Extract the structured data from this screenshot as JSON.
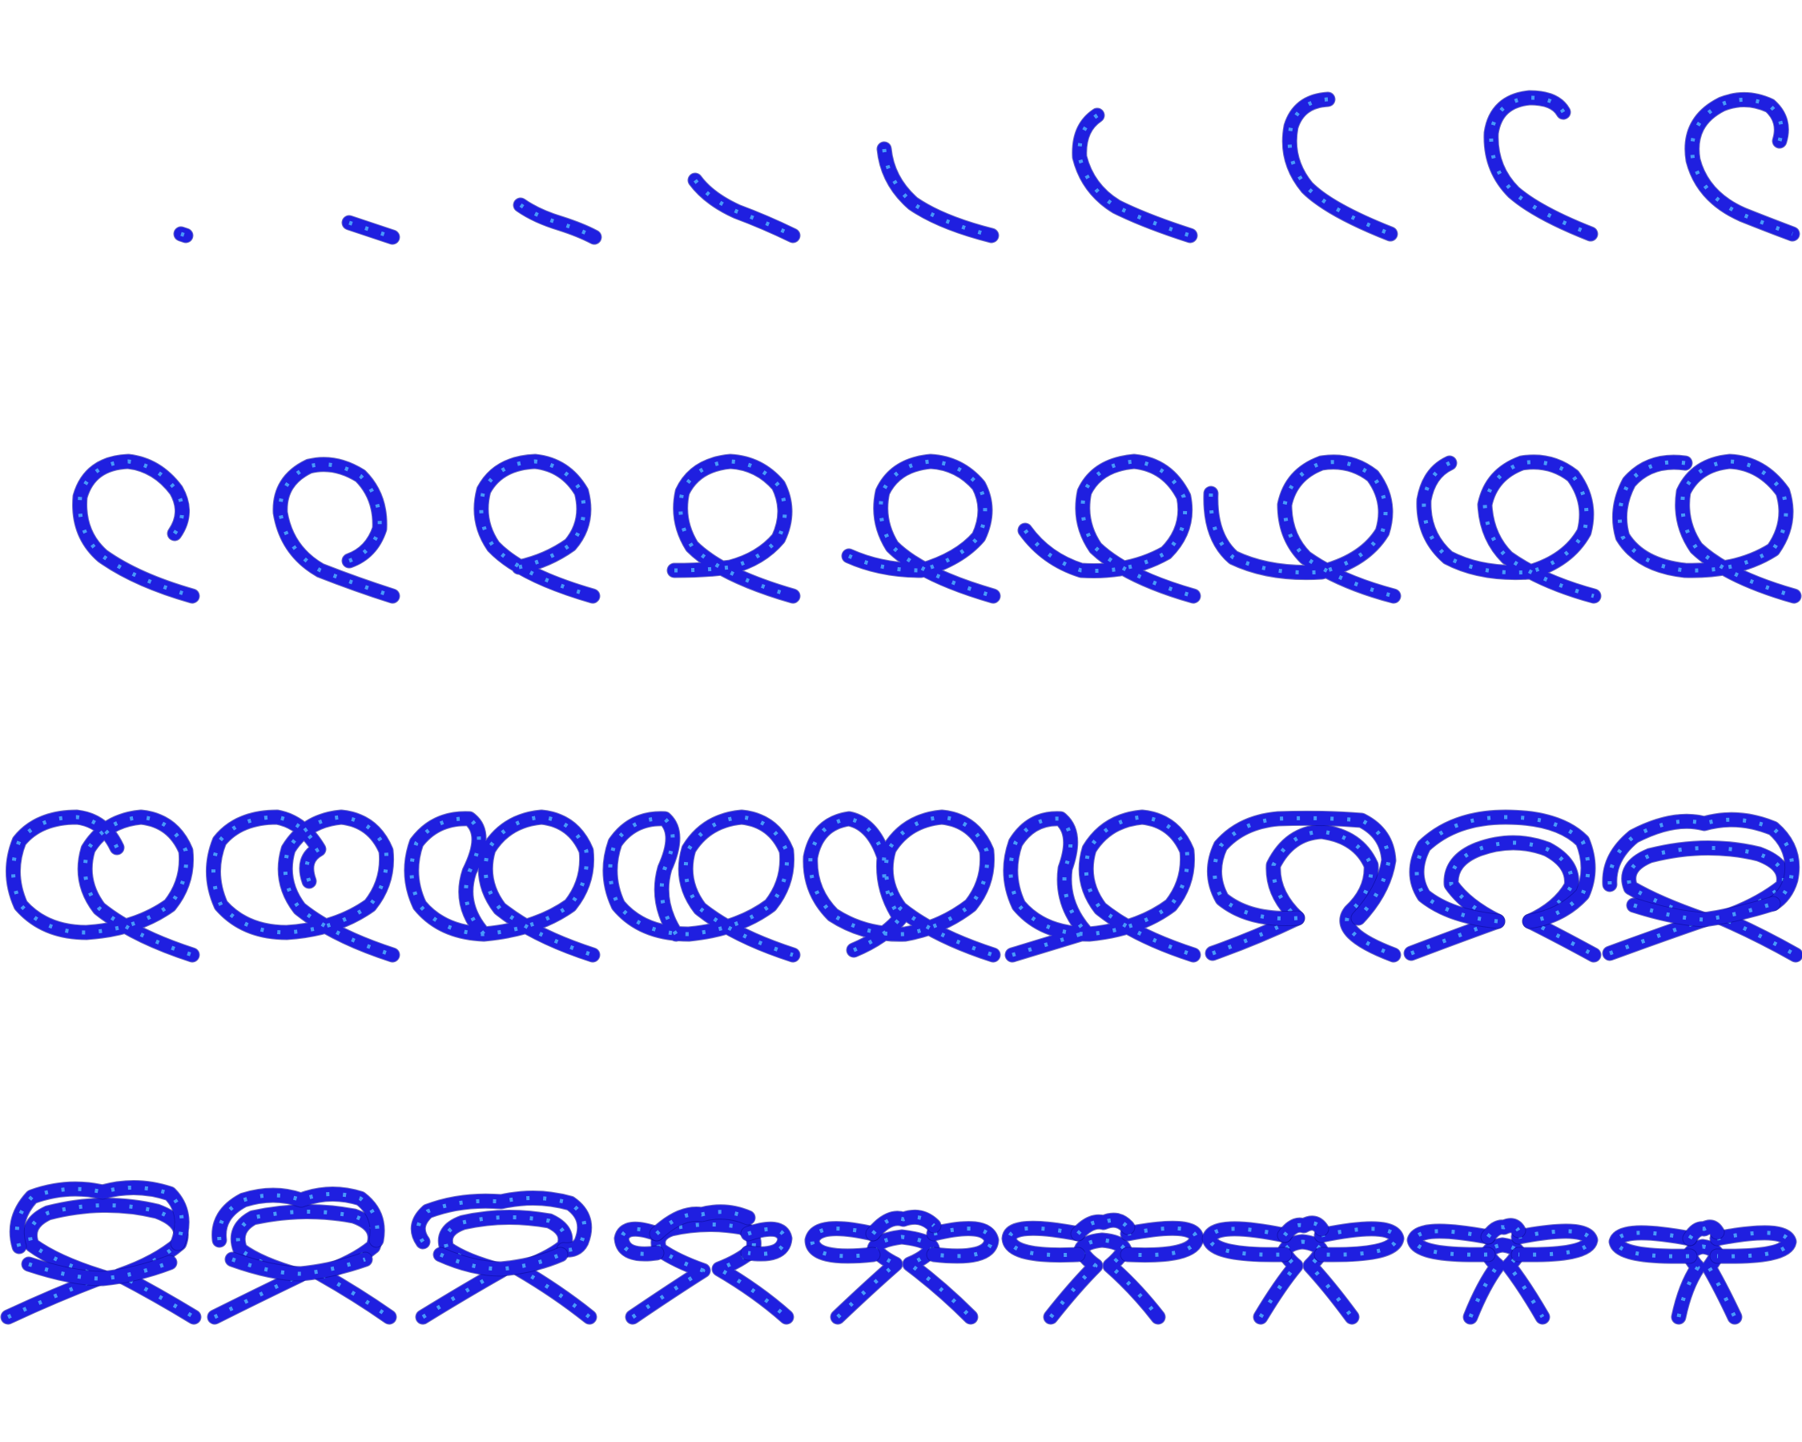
{
  "figure": {
    "colors": {
      "background": "#ffffff",
      "rope": "#1f1fe0",
      "rope_edge": "#0c0c9a",
      "rope_fleck": "#4fb0ff"
    },
    "layout": {
      "rows": 4,
      "columns": 9
    },
    "frames": [
      {
        "row": 1,
        "col": 1,
        "stage": "tail-point"
      },
      {
        "row": 1,
        "col": 2,
        "stage": "short-segment"
      },
      {
        "row": 1,
        "col": 3,
        "stage": "gentle-curve"
      },
      {
        "row": 1,
        "col": 4,
        "stage": "curve-rising"
      },
      {
        "row": 1,
        "col": 5,
        "stage": "curve-arc"
      },
      {
        "row": 1,
        "col": 6,
        "stage": "half-hook"
      },
      {
        "row": 1,
        "col": 7,
        "stage": "open-c"
      },
      {
        "row": 1,
        "col": 8,
        "stage": "c-hook"
      },
      {
        "row": 1,
        "col": 9,
        "stage": "curl-begin"
      },
      {
        "row": 2,
        "col": 1,
        "stage": "curl-inward"
      },
      {
        "row": 2,
        "col": 2,
        "stage": "curl-closing"
      },
      {
        "row": 2,
        "col": 3,
        "stage": "loop-closed"
      },
      {
        "row": 2,
        "col": 4,
        "stage": "loop-tail-left"
      },
      {
        "row": 2,
        "col": 5,
        "stage": "loop-tail-extend"
      },
      {
        "row": 2,
        "col": 6,
        "stage": "second-curve-start"
      },
      {
        "row": 2,
        "col": 7,
        "stage": "second-curve-up"
      },
      {
        "row": 2,
        "col": 8,
        "stage": "second-curve-hook"
      },
      {
        "row": 2,
        "col": 9,
        "stage": "second-loop-open"
      },
      {
        "row": 3,
        "col": 1,
        "stage": "two-loops-hook"
      },
      {
        "row": 3,
        "col": 2,
        "stage": "two-loops-curl"
      },
      {
        "row": 3,
        "col": 3,
        "stage": "two-loops-tuck"
      },
      {
        "row": 3,
        "col": 4,
        "stage": "two-loops-cross"
      },
      {
        "row": 3,
        "col": 5,
        "stage": "two-loops-tail"
      },
      {
        "row": 3,
        "col": 6,
        "stage": "two-loops-tails-out"
      },
      {
        "row": 3,
        "col": 7,
        "stage": "loops-nest"
      },
      {
        "row": 3,
        "col": 8,
        "stage": "loops-flatten"
      },
      {
        "row": 3,
        "col": 9,
        "stage": "loops-overlay"
      },
      {
        "row": 4,
        "col": 1,
        "stage": "pretzel-wide"
      },
      {
        "row": 4,
        "col": 2,
        "stage": "pretzel-narrow"
      },
      {
        "row": 4,
        "col": 3,
        "stage": "pretzel-tighten"
      },
      {
        "row": 4,
        "col": 4,
        "stage": "pretzel-ears"
      },
      {
        "row": 4,
        "col": 5,
        "stage": "knot-ears"
      },
      {
        "row": 4,
        "col": 6,
        "stage": "knot-compact"
      },
      {
        "row": 4,
        "col": 7,
        "stage": "knot-dressed"
      },
      {
        "row": 4,
        "col": 8,
        "stage": "knot-tight"
      },
      {
        "row": 4,
        "col": 9,
        "stage": "knot-final"
      }
    ]
  }
}
